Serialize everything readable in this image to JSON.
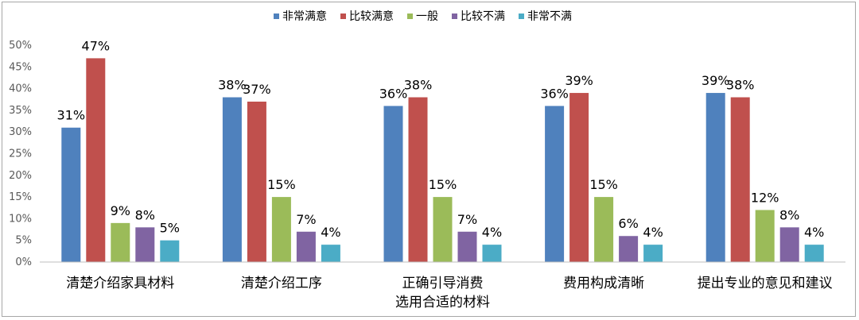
{
  "chart_data": {
    "type": "bar",
    "categories": [
      [
        "清楚介绍家具材料"
      ],
      [
        "清楚介绍工序"
      ],
      [
        "正确引导消费",
        "选用合适的材料"
      ],
      [
        "费用构成清晰"
      ],
      [
        "提出专业的意见和建议"
      ]
    ],
    "series": [
      {
        "name": "非常满意",
        "color": "#4f81bd",
        "values": [
          31,
          38,
          36,
          36,
          39
        ],
        "labels": [
          "31%",
          "38%",
          "36%",
          "36%",
          "39%"
        ]
      },
      {
        "name": "比较满意",
        "color": "#c0504d",
        "values": [
          47,
          37,
          38,
          39,
          38
        ],
        "labels": [
          "47%",
          "37%",
          "38%",
          "39%",
          "38%"
        ]
      },
      {
        "name": "一般",
        "color": "#9bbb59",
        "values": [
          9,
          15,
          15,
          15,
          12
        ],
        "labels": [
          "9%",
          "15%",
          "15%",
          "15%",
          "12%"
        ]
      },
      {
        "name": "比较不满",
        "color": "#8064a2",
        "values": [
          8,
          7,
          7,
          6,
          8
        ],
        "labels": [
          "8%",
          "7%",
          "7%",
          "6%",
          "8%"
        ]
      },
      {
        "name": "非常不满",
        "color": "#4bacc6",
        "values": [
          5,
          4,
          4,
          4,
          4
        ],
        "labels": [
          "5%",
          "4%",
          "4%",
          "4%",
          "4%"
        ]
      }
    ],
    "yticks": [
      "0%",
      "5%",
      "10%",
      "15%",
      "20%",
      "25%",
      "30%",
      "35%",
      "40%",
      "45%",
      "50%"
    ],
    "ylim": [
      0,
      50
    ],
    "legend_position": "top",
    "grid": false
  }
}
